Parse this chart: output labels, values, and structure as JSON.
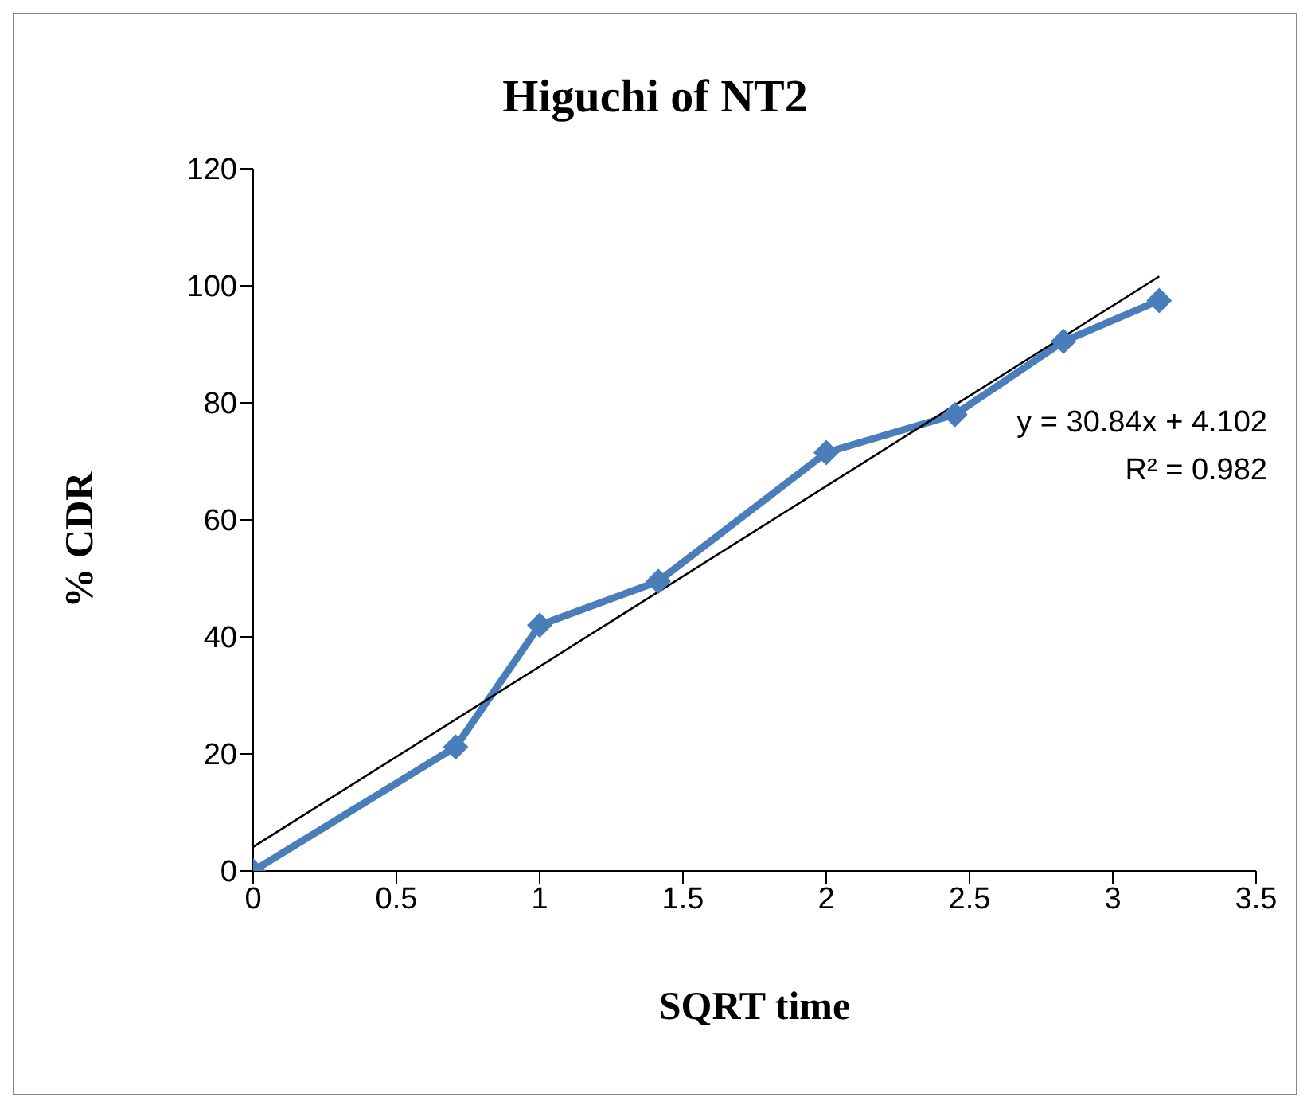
{
  "chart_data": {
    "type": "line",
    "title": "Higuchi of NT2",
    "xlabel": "SQRT time",
    "ylabel": "% CDR",
    "xlim": [
      0,
      3.5
    ],
    "xticks": [
      0,
      0.5,
      1,
      1.5,
      2,
      2.5,
      3,
      3.5
    ],
    "ylim": [
      0,
      120
    ],
    "yticks": [
      0,
      20,
      40,
      60,
      80,
      100,
      120
    ],
    "series": [
      {
        "color": "#4a7ebb",
        "marker": "diamond",
        "x": [
          0,
          0.707,
          1,
          1.414,
          2,
          2.449,
          2.828,
          3.162
        ],
        "values": [
          0,
          21.2,
          42,
          49.5,
          71.5,
          78,
          90.5,
          97.5
        ]
      },
      {
        "color": "#000000",
        "marker": "none",
        "x": [
          0,
          3.162
        ],
        "values": [
          4.1,
          101.6
        ]
      }
    ],
    "annotations": [
      "y = 30.84x + 4.102",
      "R² = 0.982"
    ]
  }
}
